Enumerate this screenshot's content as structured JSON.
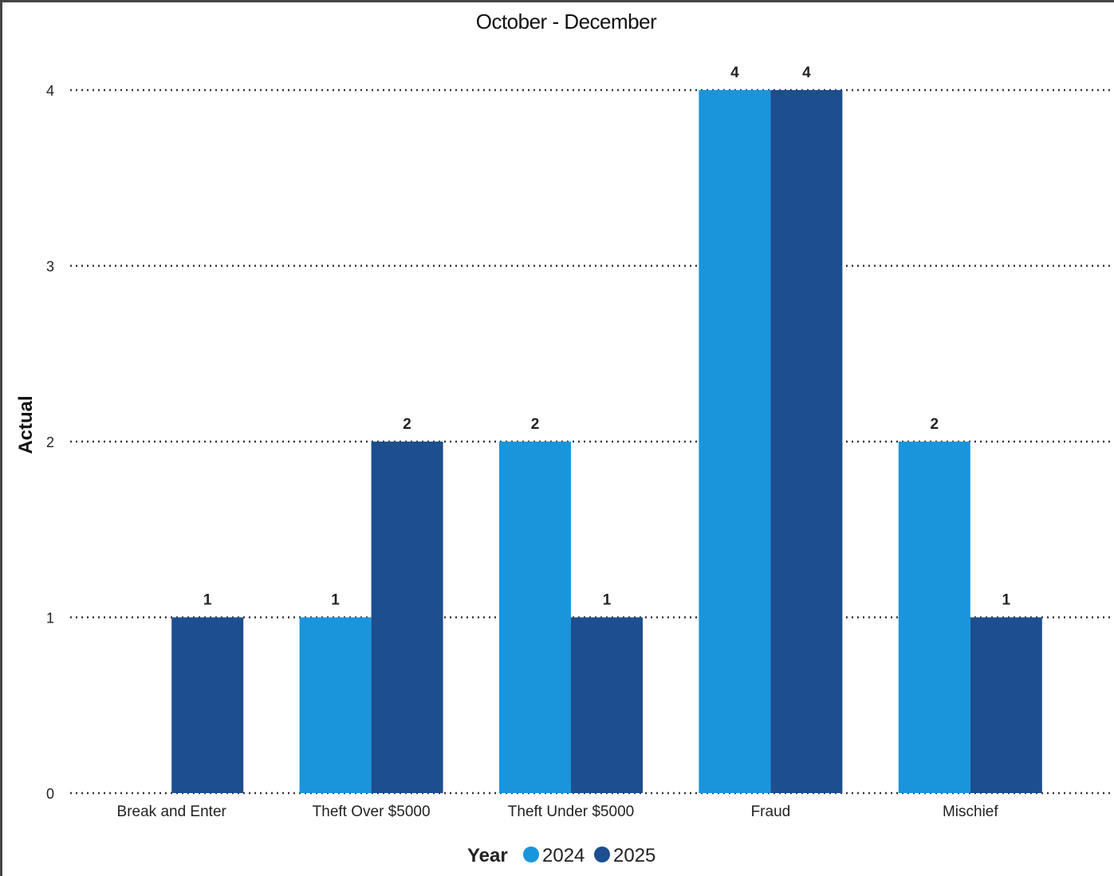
{
  "chart_data": {
    "type": "bar",
    "title": "October - December",
    "ylabel": "Actual",
    "xlabel": "",
    "categories": [
      "Break and Enter",
      "Theft Over $5000",
      "Theft Under $5000",
      "Fraud",
      "Mischief"
    ],
    "series": [
      {
        "name": "2024",
        "values": [
          null,
          1,
          2,
          4,
          2
        ],
        "color": "#1a95dc"
      },
      {
        "name": "2025",
        "values": [
          1,
          2,
          1,
          4,
          1
        ],
        "color": "#1d4e8f"
      }
    ],
    "yticks": [
      "0",
      "1",
      "2",
      "3",
      "4"
    ],
    "ylim": [
      0,
      4
    ],
    "grid": true,
    "legend": {
      "title": "Year",
      "position": "bottom-center"
    }
  }
}
